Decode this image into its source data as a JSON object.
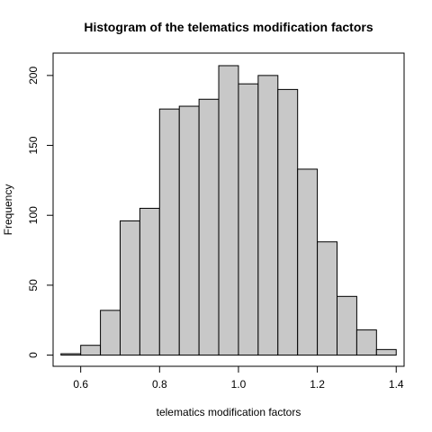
{
  "chart_data": {
    "type": "bar",
    "title": "Histogram of the telematics modification factors",
    "xlabel": "telematics modification factors",
    "ylabel": "Frequency",
    "bin_edges": [
      0.55,
      0.6,
      0.65,
      0.7,
      0.75,
      0.8,
      0.85,
      0.9,
      0.95,
      1.0,
      1.05,
      1.1,
      1.15,
      1.2,
      1.25,
      1.3,
      1.35,
      1.4
    ],
    "values": [
      1,
      7,
      32,
      96,
      105,
      176,
      178,
      183,
      207,
      194,
      200,
      190,
      133,
      81,
      42,
      18,
      4
    ],
    "xlim": [
      0.53,
      1.42
    ],
    "ylim": [
      -8,
      216
    ],
    "x_ticks": [
      0.6,
      0.8,
      1.0,
      1.2,
      1.4
    ],
    "x_tick_labels": [
      "0.6",
      "0.8",
      "1.0",
      "1.2",
      "1.4"
    ],
    "y_ticks": [
      0,
      50,
      100,
      150,
      200
    ],
    "y_tick_labels": [
      "0",
      "50",
      "100",
      "150",
      "200"
    ],
    "bar_color": "#c8c8c8",
    "grid": false,
    "legend": "none"
  }
}
